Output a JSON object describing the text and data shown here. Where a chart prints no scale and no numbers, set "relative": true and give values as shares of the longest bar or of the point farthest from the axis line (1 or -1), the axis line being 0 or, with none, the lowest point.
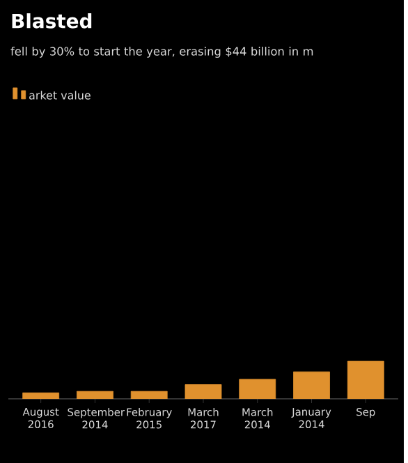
{
  "chart_data": {
    "type": "bar",
    "title": "Blasted",
    "subtitle": "fell by 30% to start the year, erasing $44 billion in m",
    "categories": [
      "August 2016",
      "September 2014",
      "February 2015",
      "March 2017",
      "March 2014",
      "January 2014",
      "Sep"
    ],
    "series": [
      {
        "name": "arket value",
        "color": "#e0912e",
        "values": [
          0.16,
          0.2,
          0.2,
          0.38,
          0.52,
          0.72,
          1
        ]
      }
    ],
    "relative": true,
    "legend": "top left"
  }
}
